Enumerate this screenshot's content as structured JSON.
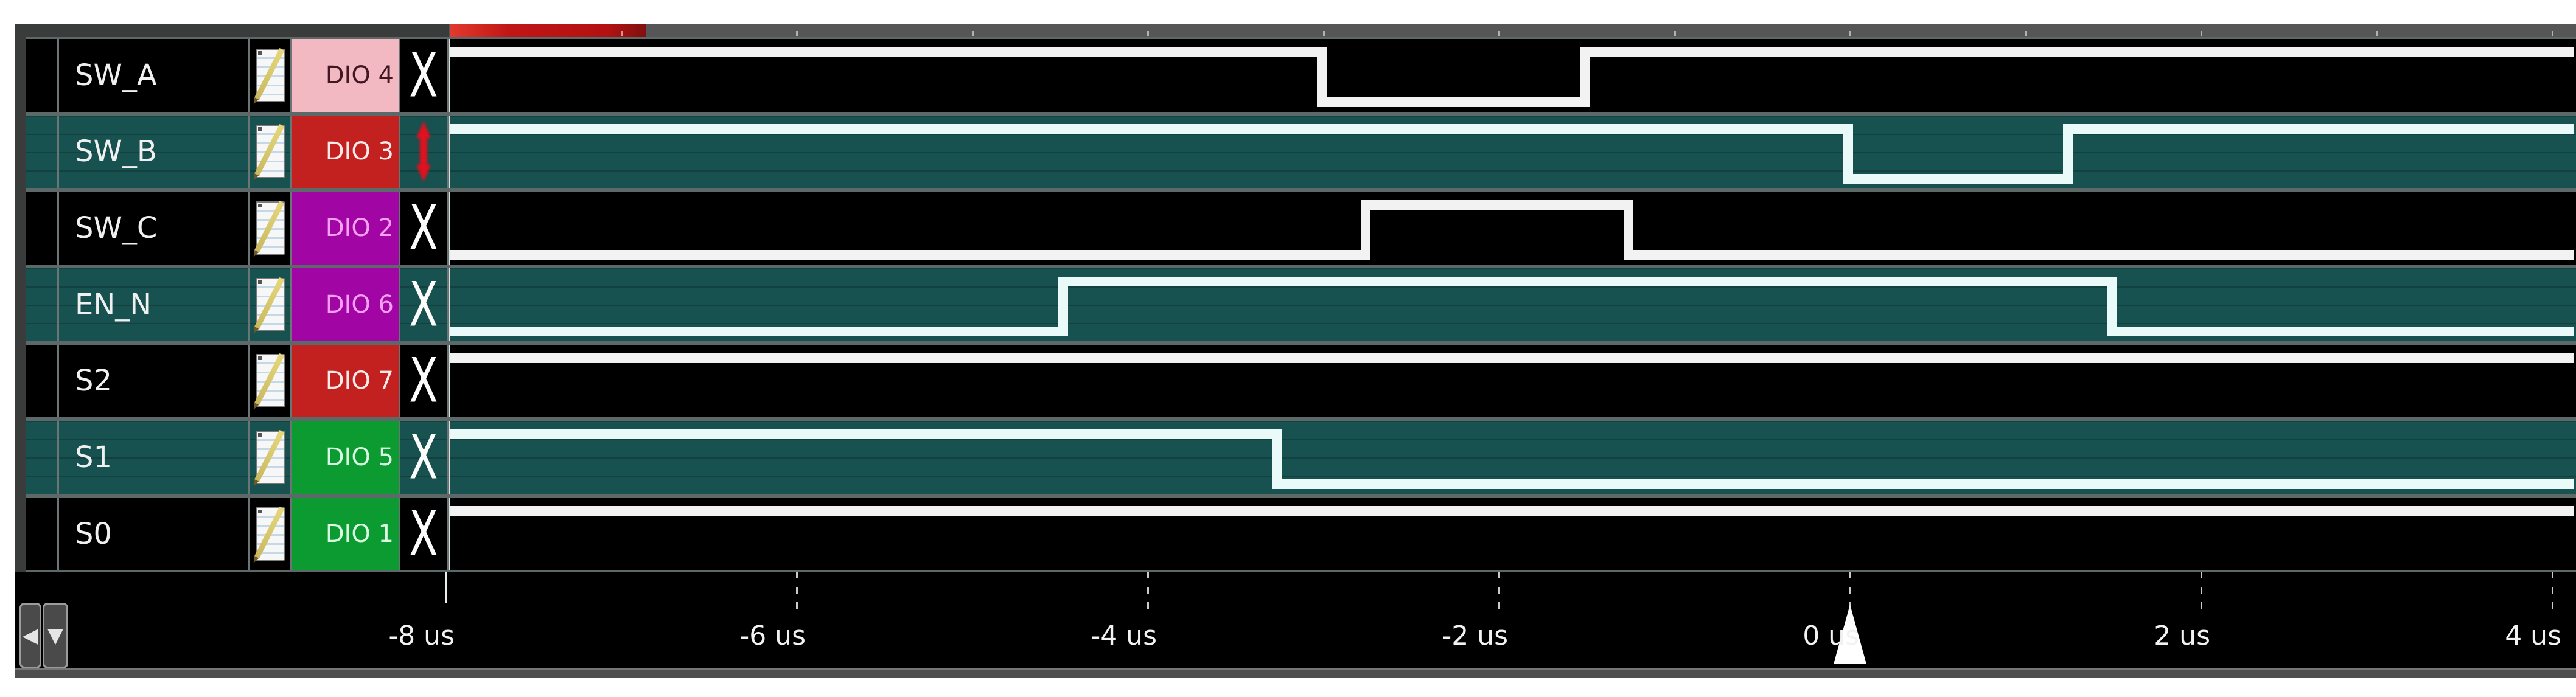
{
  "signals": [
    {
      "name": "SW_A",
      "channel": "DIO 4",
      "badge_bg": "#f2b9c2",
      "badge_fg": "#431722",
      "row_tone": "dark",
      "trigger": "dont-care",
      "trigger_glyph": "X",
      "wave": [
        [
          -8,
          1
        ],
        [
          -3,
          0
        ],
        [
          -1.5,
          1
        ]
      ]
    },
    {
      "name": "SW_B",
      "channel": "DIO 3",
      "badge_bg": "#c32120",
      "badge_fg": "#ffeaea",
      "row_tone": "teal",
      "trigger": "falling-edge",
      "trigger_glyph": "edge",
      "wave": [
        [
          -8,
          1
        ],
        [
          0,
          0
        ],
        [
          1.25,
          1
        ]
      ]
    },
    {
      "name": "SW_C",
      "channel": "DIO 2",
      "badge_bg": "#a105a3",
      "badge_fg": "#f6a0f4",
      "row_tone": "dark",
      "trigger": "dont-care",
      "trigger_glyph": "X",
      "wave": [
        [
          -8,
          0
        ],
        [
          -2.75,
          1
        ],
        [
          -1.25,
          0
        ]
      ]
    },
    {
      "name": "EN_N",
      "channel": "DIO 6",
      "badge_bg": "#a105a3",
      "badge_fg": "#f6a0f4",
      "row_tone": "teal",
      "trigger": "dont-care",
      "trigger_glyph": "X",
      "wave": [
        [
          -8,
          0
        ],
        [
          -4.47,
          1
        ],
        [
          1.5,
          0
        ]
      ]
    },
    {
      "name": "S2",
      "channel": "DIO 7",
      "badge_bg": "#c32120",
      "badge_fg": "#ffeaea",
      "row_tone": "dark",
      "trigger": "dont-care",
      "trigger_glyph": "X",
      "wave": [
        [
          -8,
          1
        ]
      ]
    },
    {
      "name": "S1",
      "channel": "DIO 5",
      "badge_bg": "#0b9b31",
      "badge_fg": "#dafbe3",
      "row_tone": "teal",
      "trigger": "dont-care",
      "trigger_glyph": "X",
      "wave": [
        [
          -8,
          1
        ],
        [
          -3.25,
          0
        ]
      ]
    },
    {
      "name": "S0",
      "channel": "DIO 1",
      "badge_bg": "#0b9b31",
      "badge_fg": "#dafbe3",
      "row_tone": "dark",
      "trigger": "dont-care",
      "trigger_glyph": "X",
      "wave": [
        [
          -8,
          1
        ]
      ]
    }
  ],
  "axis": {
    "unit": "us",
    "range_us": [
      -8,
      4.1
    ],
    "ticks": [
      {
        "t": -8,
        "label": "-8 us"
      },
      {
        "t": -6,
        "label": "-6 us"
      },
      {
        "t": -4,
        "label": "-4 us"
      },
      {
        "t": -2,
        "label": "-2 us"
      },
      {
        "t": 0,
        "label": "0 us"
      },
      {
        "t": 2,
        "label": "2 us"
      },
      {
        "t": 4,
        "label": "4 us"
      }
    ]
  },
  "trigger_marker": {
    "t": 0,
    "shape": "triangle-up",
    "color": "#ffffff"
  },
  "controls": {
    "scroll_left_glyph": "◀",
    "scroll_down_glyph": "▼"
  },
  "colors": {
    "row_dark": "#000000",
    "row_teal": "#175150",
    "trace_on_dark": "#f2f2f2",
    "trace_on_teal": "#eafaf8",
    "row_border": "#5d6969",
    "grid_line": "#e8eeee",
    "strip_highlight_red": "#c01616",
    "edge_trigger_red": "#e3101e",
    "badge_pink": "#f2b9c2",
    "badge_red": "#c32120",
    "badge_purple": "#a105a3",
    "badge_green": "#0b9b31"
  }
}
